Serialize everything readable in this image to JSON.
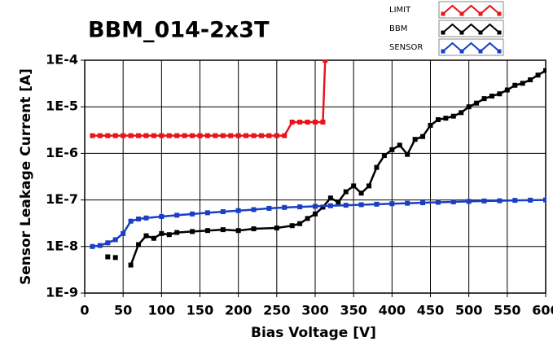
{
  "chart_data": {
    "type": "line",
    "title": "BBM_014-2x3T",
    "x_label": "Bias Voltage [V]",
    "y_label": "Sensor Leakage Current [A]",
    "log_y": true,
    "grid": true,
    "legend": "top-right",
    "xlim": [
      0,
      600
    ],
    "xticks": [
      0,
      50,
      100,
      150,
      200,
      250,
      300,
      350,
      400,
      450,
      500,
      550,
      600
    ],
    "ylim": [
      1e-09,
      0.0001
    ],
    "yticks": [
      {
        "value": 1e-09,
        "label": "1E-9"
      },
      {
        "value": 1e-08,
        "label": "1E-8"
      },
      {
        "value": 1e-07,
        "label": "1E-7"
      },
      {
        "value": 1e-06,
        "label": "1E-6"
      },
      {
        "value": 1e-05,
        "label": "1E-5"
      },
      {
        "value": 0.0001,
        "label": "1E-4"
      }
    ],
    "series": [
      {
        "name": "LIMIT",
        "color": "#e8141c",
        "x": [
          10,
          20,
          30,
          40,
          50,
          60,
          70,
          80,
          90,
          100,
          110,
          120,
          130,
          140,
          150,
          160,
          170,
          180,
          190,
          200,
          210,
          220,
          230,
          240,
          250,
          260,
          270,
          280,
          290,
          300,
          310,
          313
        ],
        "values": [
          2.4e-06,
          2.4e-06,
          2.4e-06,
          2.4e-06,
          2.4e-06,
          2.4e-06,
          2.4e-06,
          2.4e-06,
          2.4e-06,
          2.4e-06,
          2.4e-06,
          2.4e-06,
          2.4e-06,
          2.4e-06,
          2.4e-06,
          2.4e-06,
          2.4e-06,
          2.4e-06,
          2.4e-06,
          2.4e-06,
          2.4e-06,
          2.4e-06,
          2.4e-06,
          2.4e-06,
          2.4e-06,
          2.4e-06,
          4.7e-06,
          4.7e-06,
          4.7e-06,
          4.7e-06,
          4.7e-06,
          0.0001
        ]
      },
      {
        "name": "BBM",
        "color": "#000000",
        "x": [
          30,
          35,
          40,
          50,
          60,
          70,
          80,
          90,
          100,
          110,
          120,
          140,
          160,
          180,
          200,
          220,
          250,
          270,
          280,
          290,
          300,
          310,
          320,
          330,
          340,
          350,
          360,
          370,
          380,
          390,
          400,
          410,
          420,
          430,
          440,
          450,
          460,
          470,
          480,
          490,
          500,
          510,
          520,
          530,
          540,
          550,
          560,
          570,
          580,
          590,
          600
        ],
        "values": [
          6e-09,
          null,
          5.8e-09,
          null,
          4e-09,
          1.1e-08,
          1.7e-08,
          1.5e-08,
          1.9e-08,
          1.8e-08,
          2e-08,
          2.1e-08,
          2.2e-08,
          2.3e-08,
          2.2e-08,
          2.4e-08,
          2.5e-08,
          2.8e-08,
          3.1e-08,
          4e-08,
          5e-08,
          7e-08,
          1.1e-07,
          9e-08,
          1.5e-07,
          2e-07,
          1.4e-07,
          2e-07,
          5e-07,
          9e-07,
          1.2e-06,
          1.5e-06,
          9.5e-07,
          2e-06,
          2.3e-06,
          4e-06,
          5.3e-06,
          5.7e-06,
          6.3e-06,
          7.5e-06,
          1e-05,
          1.2e-05,
          1.5e-05,
          1.7e-05,
          1.9e-05,
          2.3e-05,
          2.9e-05,
          3.2e-05,
          3.8e-05,
          4.8e-05,
          6e-05
        ]
      },
      {
        "name": "SENSOR",
        "color": "#1a3fc4",
        "x": [
          10,
          20,
          30,
          40,
          50,
          60,
          70,
          80,
          100,
          120,
          140,
          160,
          180,
          200,
          220,
          240,
          260,
          280,
          300,
          320,
          340,
          360,
          380,
          400,
          420,
          440,
          460,
          480,
          500,
          520,
          540,
          560,
          580,
          600
        ],
        "values": [
          1e-08,
          1.05e-08,
          1.2e-08,
          1.4e-08,
          1.9e-08,
          3.5e-08,
          3.9e-08,
          4.1e-08,
          4.4e-08,
          4.7e-08,
          5e-08,
          5.3e-08,
          5.6e-08,
          5.9e-08,
          6.2e-08,
          6.6e-08,
          6.9e-08,
          7.1e-08,
          7.3e-08,
          7.5e-08,
          7.7e-08,
          7.9e-08,
          8.1e-08,
          8.3e-08,
          8.5e-08,
          8.7e-08,
          8.9e-08,
          9.1e-08,
          9.3e-08,
          9.5e-08,
          9.6e-08,
          9.8e-08,
          9.9e-08,
          1e-07
        ]
      }
    ]
  }
}
